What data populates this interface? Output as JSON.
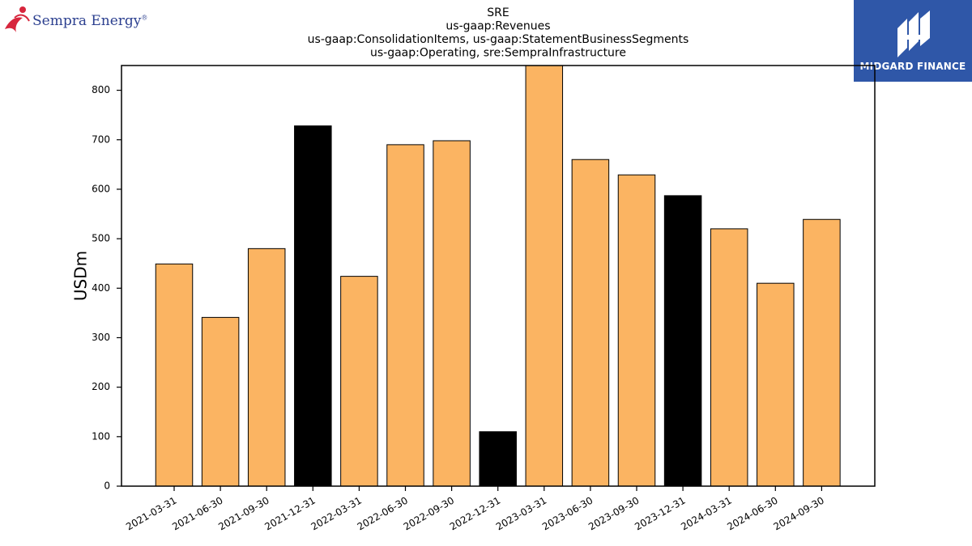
{
  "logos": {
    "left_text": "Sempra Energy",
    "left_reg": "®",
    "left_icon": "sempra-figure-icon",
    "right_text": "MIDGARD FINANCE",
    "right_icon": "midgard-mark-icon",
    "right_bg": "#2f57a8"
  },
  "chart_data": {
    "type": "bar",
    "title_lines": [
      "SRE",
      "us-gaap:Revenues",
      "us-gaap:ConsolidationItems, us-gaap:StatementBusinessSegments",
      "us-gaap:Operating, sre:SempraInfrastructure"
    ],
    "ylabel": "USDm",
    "xlabel": "",
    "ylim": [
      0,
      850
    ],
    "yticks": [
      0,
      100,
      200,
      300,
      400,
      500,
      600,
      700,
      800
    ],
    "categories": [
      "2021-03-31",
      "2021-06-30",
      "2021-09-30",
      "2021-12-31",
      "2022-03-31",
      "2022-06-30",
      "2022-09-30",
      "2022-12-31",
      "2023-03-31",
      "2023-06-30",
      "2023-09-30",
      "2023-12-31",
      "2024-03-31",
      "2024-06-30",
      "2024-09-30"
    ],
    "values": [
      449,
      341,
      480,
      728,
      424,
      690,
      698,
      110,
      855,
      660,
      629,
      587,
      520,
      410,
      539
    ],
    "colors": [
      "#fbb462",
      "#fbb462",
      "#fbb462",
      "#000000",
      "#fbb462",
      "#fbb462",
      "#fbb462",
      "#000000",
      "#fbb462",
      "#fbb462",
      "#fbb462",
      "#000000",
      "#fbb462",
      "#fbb462",
      "#fbb462"
    ],
    "grid": false,
    "legend": "none"
  }
}
